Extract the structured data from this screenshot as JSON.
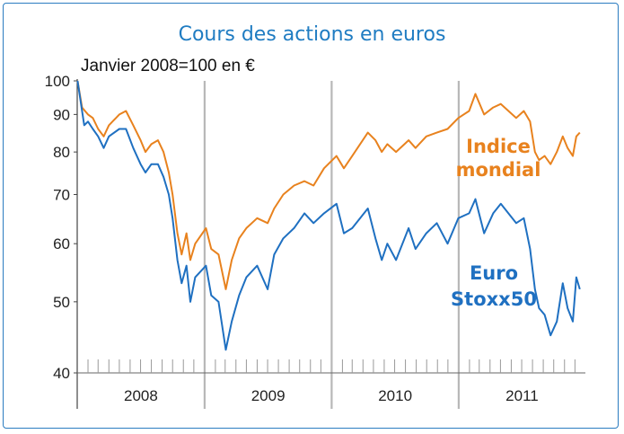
{
  "chart_data": {
    "type": "line",
    "title": "Cours des actions en euros",
    "subtitle": "Janvier 2008=100 en €",
    "yscale": "log",
    "ylim": [
      40,
      100
    ],
    "yticks": [
      "100",
      "90",
      "80",
      "70",
      "60",
      "50",
      "40"
    ],
    "years": [
      "2008",
      "2009",
      "2010",
      "2011"
    ],
    "grid": "vertical lines at year boundaries",
    "series": [
      {
        "name": "Indice mondial",
        "color": "#e8821e",
        "label_lines": [
          "Indice",
          "mondial"
        ],
        "points": [
          [
            "2008-01-02",
            100
          ],
          [
            "2008-01-15",
            92
          ],
          [
            "2008-02-01",
            90
          ],
          [
            "2008-02-15",
            89
          ],
          [
            "2008-03-01",
            86
          ],
          [
            "2008-03-17",
            84
          ],
          [
            "2008-04-01",
            87
          ],
          [
            "2008-05-01",
            90
          ],
          [
            "2008-05-20",
            91
          ],
          [
            "2008-06-10",
            87
          ],
          [
            "2008-07-01",
            83
          ],
          [
            "2008-07-15",
            80
          ],
          [
            "2008-08-01",
            82
          ],
          [
            "2008-08-20",
            83
          ],
          [
            "2008-09-05",
            80
          ],
          [
            "2008-09-20",
            75
          ],
          [
            "2008-10-01",
            70
          ],
          [
            "2008-10-15",
            62
          ],
          [
            "2008-10-27",
            58
          ],
          [
            "2008-11-10",
            62
          ],
          [
            "2008-11-21",
            57
          ],
          [
            "2008-12-05",
            60
          ],
          [
            "2009-01-05",
            63
          ],
          [
            "2009-01-20",
            59
          ],
          [
            "2009-02-10",
            58
          ],
          [
            "2009-03-03",
            52
          ],
          [
            "2009-03-20",
            57
          ],
          [
            "2009-04-10",
            61
          ],
          [
            "2009-05-01",
            63
          ],
          [
            "2009-06-01",
            65
          ],
          [
            "2009-07-01",
            64
          ],
          [
            "2009-07-20",
            67
          ],
          [
            "2009-08-15",
            70
          ],
          [
            "2009-09-15",
            72
          ],
          [
            "2009-10-15",
            73
          ],
          [
            "2009-11-10",
            72
          ],
          [
            "2009-12-10",
            76
          ],
          [
            "2010-01-15",
            79
          ],
          [
            "2010-02-05",
            76
          ],
          [
            "2010-03-01",
            79
          ],
          [
            "2010-04-15",
            85
          ],
          [
            "2010-05-07",
            83
          ],
          [
            "2010-05-25",
            80
          ],
          [
            "2010-06-10",
            82
          ],
          [
            "2010-07-05",
            80
          ],
          [
            "2010-08-10",
            83
          ],
          [
            "2010-08-30",
            81
          ],
          [
            "2010-09-30",
            84
          ],
          [
            "2010-10-30",
            85
          ],
          [
            "2010-11-30",
            86
          ],
          [
            "2010-12-31",
            89
          ],
          [
            "2011-01-31",
            91
          ],
          [
            "2011-02-18",
            96
          ],
          [
            "2011-03-15",
            90
          ],
          [
            "2011-04-10",
            92
          ],
          [
            "2011-05-02",
            93
          ],
          [
            "2011-06-15",
            89
          ],
          [
            "2011-07-07",
            91
          ],
          [
            "2011-07-25",
            88
          ],
          [
            "2011-08-08",
            80
          ],
          [
            "2011-08-20",
            78
          ],
          [
            "2011-09-05",
            79
          ],
          [
            "2011-09-22",
            77
          ],
          [
            "2011-10-10",
            80
          ],
          [
            "2011-10-27",
            84
          ],
          [
            "2011-11-10",
            81
          ],
          [
            "2011-11-25",
            79
          ],
          [
            "2011-12-05",
            84
          ],
          [
            "2011-12-15",
            85
          ]
        ]
      },
      {
        "name": "Euro Stoxx50",
        "color": "#1f70c1",
        "label_lines": [
          "Euro",
          "Stoxx50"
        ],
        "points": [
          [
            "2008-01-02",
            100
          ],
          [
            "2008-01-21",
            87
          ],
          [
            "2008-02-01",
            88
          ],
          [
            "2008-02-15",
            86
          ],
          [
            "2008-03-01",
            84
          ],
          [
            "2008-03-17",
            81
          ],
          [
            "2008-04-01",
            84
          ],
          [
            "2008-05-01",
            86
          ],
          [
            "2008-05-20",
            86
          ],
          [
            "2008-06-10",
            81
          ],
          [
            "2008-07-01",
            77
          ],
          [
            "2008-07-15",
            75
          ],
          [
            "2008-08-01",
            77
          ],
          [
            "2008-08-20",
            77
          ],
          [
            "2008-09-05",
            74
          ],
          [
            "2008-09-20",
            70
          ],
          [
            "2008-10-01",
            65
          ],
          [
            "2008-10-15",
            57
          ],
          [
            "2008-10-27",
            53
          ],
          [
            "2008-11-10",
            56
          ],
          [
            "2008-11-21",
            50
          ],
          [
            "2008-12-05",
            54
          ],
          [
            "2009-01-05",
            56
          ],
          [
            "2009-01-20",
            51
          ],
          [
            "2009-02-10",
            50
          ],
          [
            "2009-03-03",
            43
          ],
          [
            "2009-03-20",
            47
          ],
          [
            "2009-04-10",
            51
          ],
          [
            "2009-05-01",
            54
          ],
          [
            "2009-06-01",
            56
          ],
          [
            "2009-07-01",
            52
          ],
          [
            "2009-07-20",
            58
          ],
          [
            "2009-08-15",
            61
          ],
          [
            "2009-09-15",
            63
          ],
          [
            "2009-10-15",
            66
          ],
          [
            "2009-11-10",
            64
          ],
          [
            "2009-12-10",
            66
          ],
          [
            "2010-01-15",
            68
          ],
          [
            "2010-02-05",
            62
          ],
          [
            "2010-03-01",
            63
          ],
          [
            "2010-04-15",
            67
          ],
          [
            "2010-05-07",
            61
          ],
          [
            "2010-05-25",
            57
          ],
          [
            "2010-06-10",
            60
          ],
          [
            "2010-07-05",
            57
          ],
          [
            "2010-08-10",
            63
          ],
          [
            "2010-08-30",
            59
          ],
          [
            "2010-09-30",
            62
          ],
          [
            "2010-10-30",
            64
          ],
          [
            "2010-11-30",
            60
          ],
          [
            "2010-12-31",
            65
          ],
          [
            "2011-01-31",
            66
          ],
          [
            "2011-02-18",
            69
          ],
          [
            "2011-03-15",
            62
          ],
          [
            "2011-04-10",
            66
          ],
          [
            "2011-05-02",
            68
          ],
          [
            "2011-06-15",
            64
          ],
          [
            "2011-07-07",
            65
          ],
          [
            "2011-07-25",
            59
          ],
          [
            "2011-08-08",
            52
          ],
          [
            "2011-08-20",
            49
          ],
          [
            "2011-09-05",
            48
          ],
          [
            "2011-09-22",
            45
          ],
          [
            "2011-10-10",
            47
          ],
          [
            "2011-10-27",
            53
          ],
          [
            "2011-11-10",
            49
          ],
          [
            "2011-11-25",
            47
          ],
          [
            "2011-12-05",
            54
          ],
          [
            "2011-12-15",
            52
          ]
        ]
      }
    ]
  }
}
